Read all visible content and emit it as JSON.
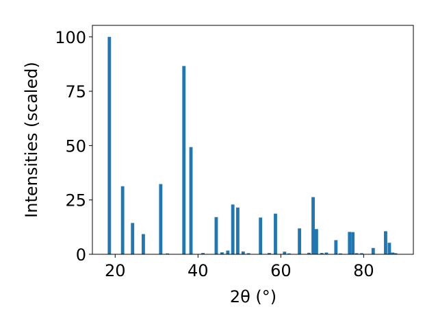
{
  "chart_data": {
    "type": "bar",
    "title": "",
    "xlabel": "2θ (°)",
    "ylabel": "Intensities (scaled)",
    "xlim": [
      14.5,
      92
    ],
    "ylim": [
      0,
      105.3
    ],
    "xticks": [
      20,
      40,
      60,
      80
    ],
    "yticks": [
      0,
      25,
      50,
      75,
      100
    ],
    "grid": false,
    "bar_color": "#1f77b4",
    "bar_width": 0.8,
    "x": [
      18.6,
      21.8,
      24.2,
      26.8,
      31.0,
      32.6,
      36.6,
      38.3,
      41.2,
      44.4,
      45.8,
      47.2,
      48.4,
      49.6,
      50.9,
      52.2,
      55.1,
      57.2,
      58.7,
      60.9,
      62.0,
      64.5,
      66.8,
      67.8,
      68.6,
      69.9,
      71.0,
      73.3,
      74.4,
      76.6,
      77.4,
      78.3,
      79.5,
      82.3,
      85.3,
      86.2,
      87.0,
      87.7
    ],
    "values": [
      100,
      31.3,
      14.4,
      9.3,
      32.3,
      0.4,
      86.6,
      49.3,
      0.6,
      17.1,
      0.9,
      1.7,
      22.9,
      21.5,
      1.3,
      0.5,
      16.9,
      0.6,
      18.7,
      1.2,
      0.4,
      11.9,
      0.7,
      26.3,
      11.6,
      0.6,
      0.8,
      6.5,
      0.4,
      10.3,
      10.2,
      0.5,
      0.5,
      2.9,
      10.6,
      5.3,
      0.8,
      0.5
    ]
  }
}
